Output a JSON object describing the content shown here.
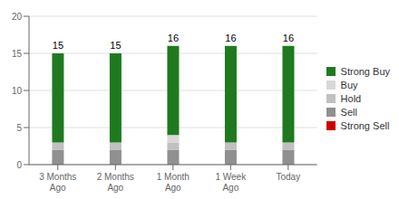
{
  "chart_data": {
    "type": "bar",
    "stacked": true,
    "categories": [
      "3 Months\nAgo",
      "2 Months\nAgo",
      "1 Month\nAgo",
      "1 Week\nAgo",
      "Today"
    ],
    "series": [
      {
        "name": "Strong Buy",
        "color": "#1f7a1f",
        "values": [
          12,
          12,
          12,
          13,
          13
        ]
      },
      {
        "name": "Buy",
        "color": "#d8d8d8",
        "values": [
          0,
          0,
          1,
          0,
          0
        ]
      },
      {
        "name": "Hold",
        "color": "#c0c0c0",
        "values": [
          1,
          1,
          1,
          1,
          1
        ]
      },
      {
        "name": "Sell",
        "color": "#909090",
        "values": [
          2,
          2,
          2,
          2,
          2
        ]
      },
      {
        "name": "Strong Sell",
        "color": "#cc0000",
        "values": [
          0,
          0,
          0,
          0,
          0
        ]
      }
    ],
    "totals": [
      15,
      15,
      16,
      16,
      16
    ],
    "ylim": [
      0,
      20
    ],
    "yticks": [
      0,
      5,
      10,
      15,
      20
    ],
    "grid": true,
    "legend": "right"
  }
}
